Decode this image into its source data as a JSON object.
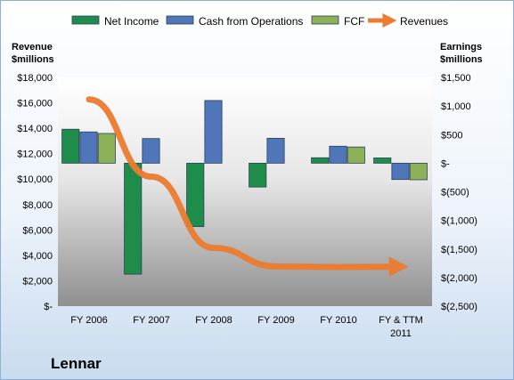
{
  "company": "Lennar",
  "chart_data": {
    "type": "bar",
    "subtype": "floating-bar with line overlay, dual axis",
    "categories": [
      "FY 2006",
      "FY 2007",
      "FY 2008",
      "FY 2009",
      "FY 2010",
      "FY & TTM 2011"
    ],
    "left_axis": {
      "label_line1": "Revenue",
      "label_line2": "$millions",
      "ylim": [
        0,
        18000
      ],
      "ticks": [
        "$18,000",
        "$16,000",
        "$14,000",
        "$12,000",
        "$10,000",
        "$8,000",
        "$6,000",
        "$4,000",
        "$2,000",
        "$-"
      ]
    },
    "right_axis": {
      "label_line1": "Earnings",
      "label_line2": "$millions",
      "ylim": [
        -2500,
        1500
      ],
      "ticks": [
        "$1,500",
        "$1,000",
        "$500",
        "$-",
        "$(500)",
        "$(1,000)",
        "$(1,500)",
        "$(2,000)",
        "$(2,500)"
      ]
    },
    "series": [
      {
        "name": "Net Income",
        "axis": "right",
        "color": "#1e8c4a",
        "values": [
          594,
          -1941,
          -1109,
          -417,
          95,
          92
        ]
      },
      {
        "name": "Cash from Operations",
        "axis": "right",
        "color": "#4f76b8",
        "values": [
          547,
          431,
          1096,
          436,
          297,
          -285
        ]
      },
      {
        "name": "FCF",
        "axis": "right",
        "color": "#8cb159",
        "values": [
          520,
          0,
          0,
          0,
          283,
          -290
        ]
      },
      {
        "name": "Revenues",
        "axis": "left",
        "type": "line",
        "color": "#ec7c30",
        "values": [
          16267,
          10187,
          4576,
          3119,
          3074,
          3100
        ]
      }
    ],
    "legend_position": "top",
    "grid": false
  }
}
